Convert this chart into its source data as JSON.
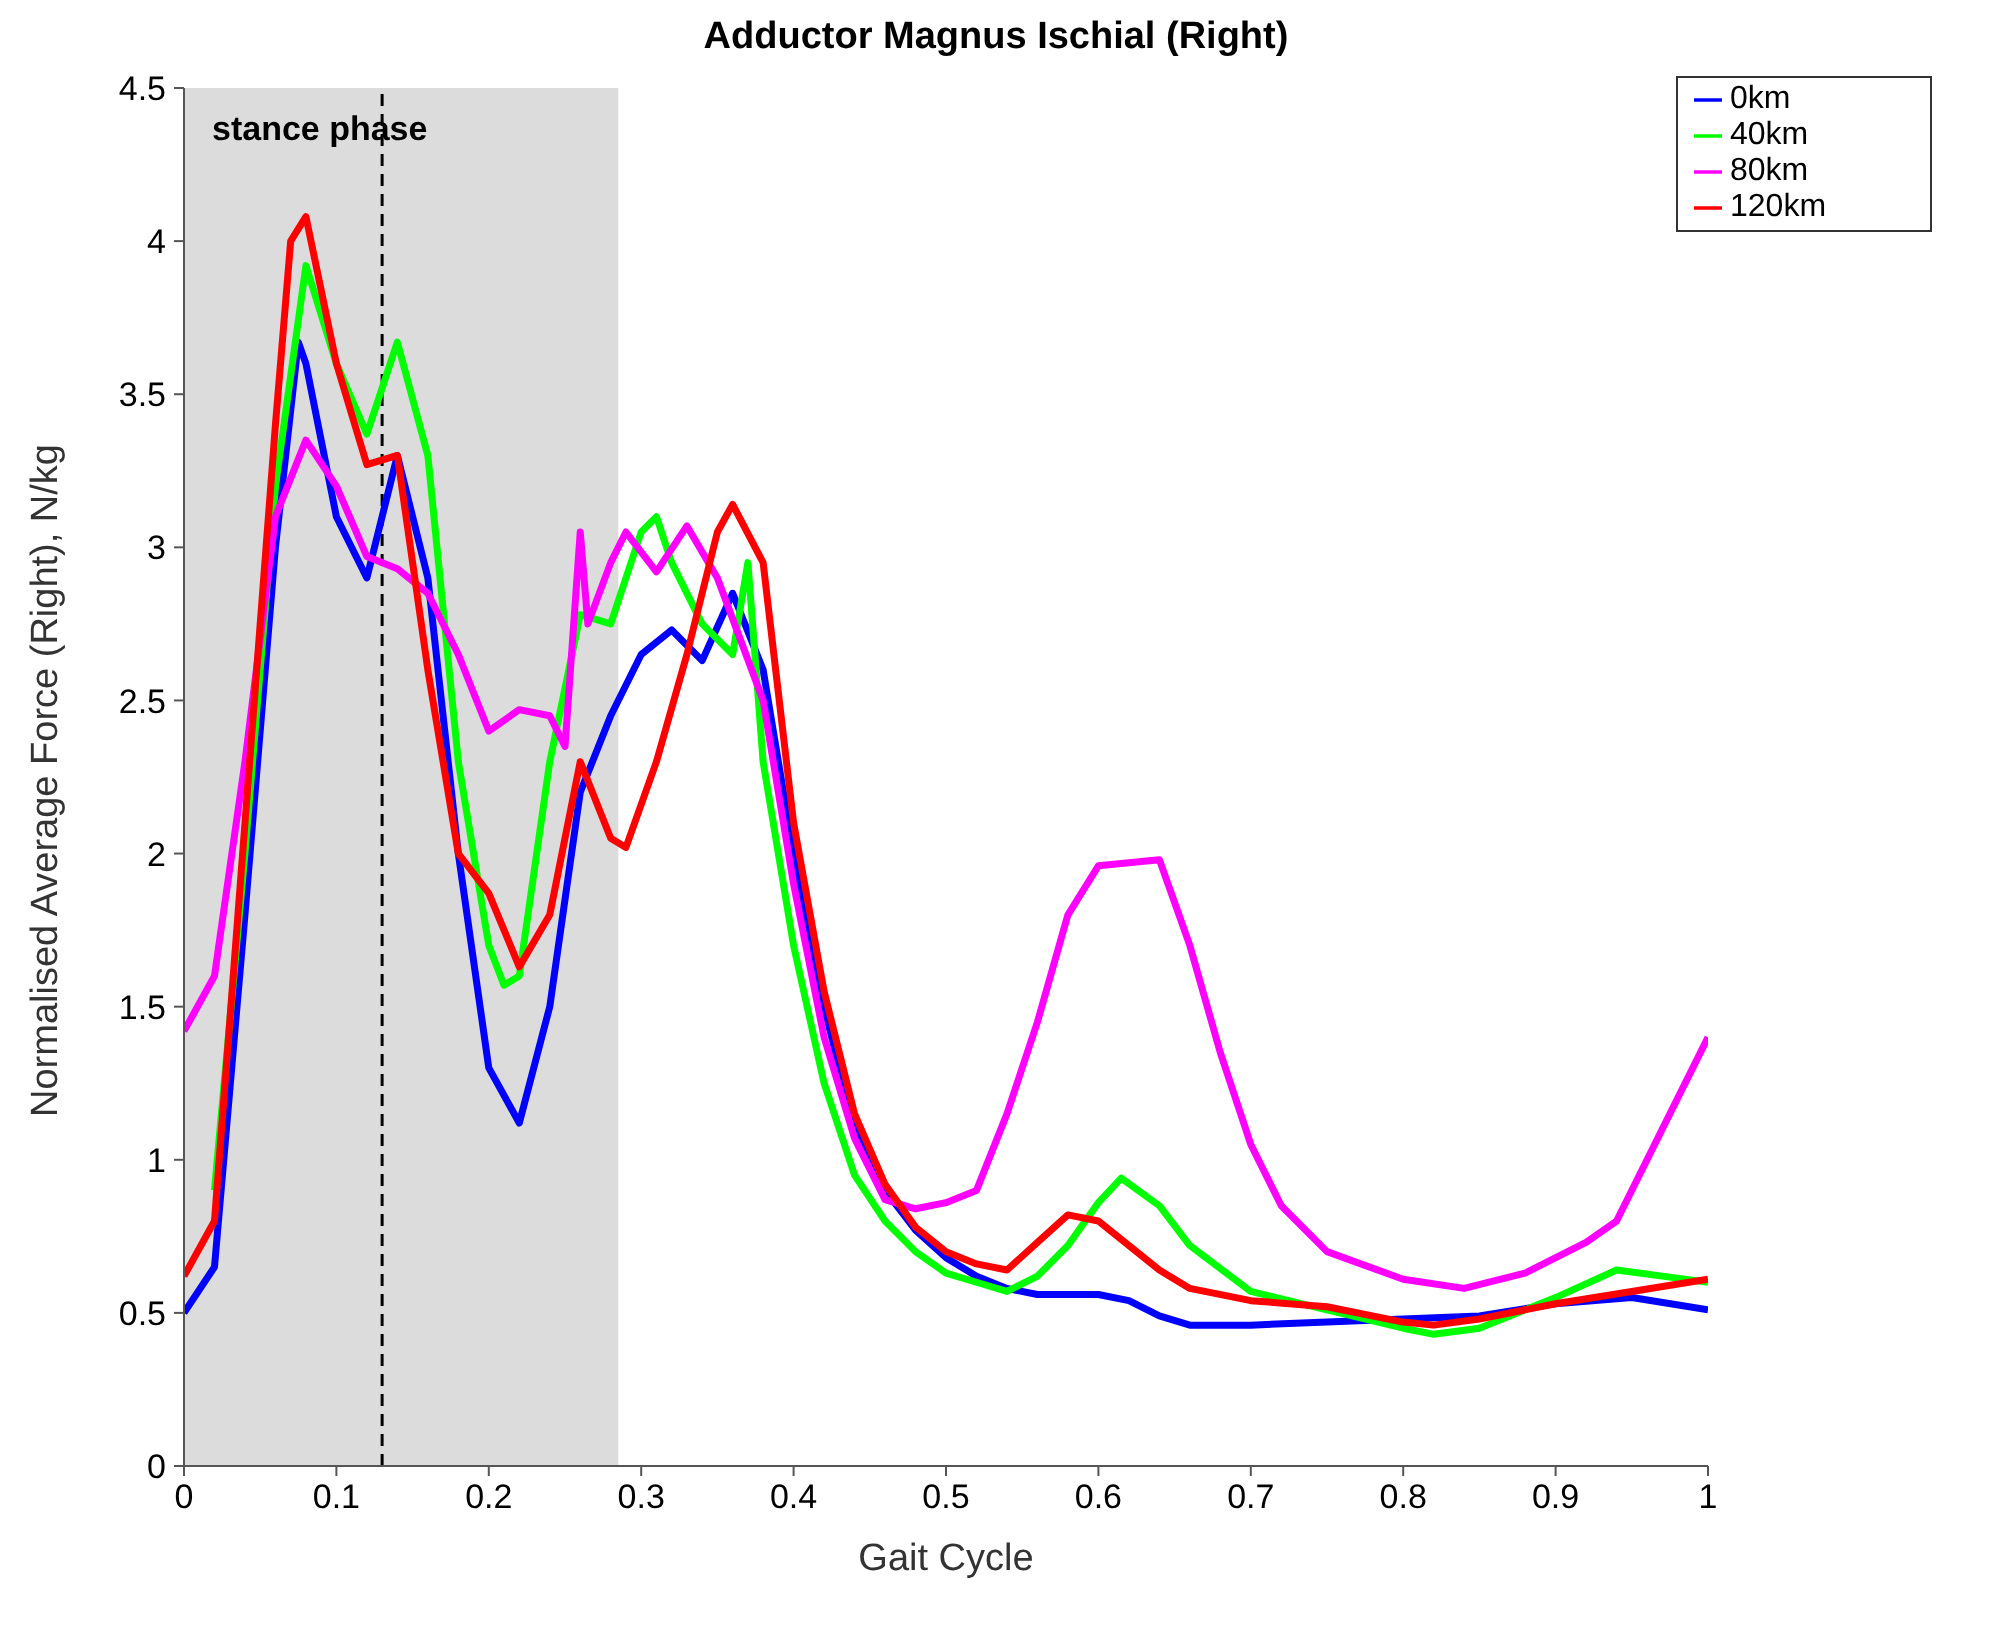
{
  "chart_data": {
    "type": "line",
    "title": "Adductor Magnus Ischial (Right)",
    "xlabel": "Gait Cycle",
    "ylabel": "Normalised Average Force (Right), N/kg",
    "xlim": [
      0,
      1
    ],
    "xticks": [
      0,
      0.1,
      0.2,
      0.3,
      0.4,
      0.5,
      0.6,
      0.7,
      0.8,
      0.9,
      1
    ],
    "ylim": [
      0,
      4.5
    ],
    "yticks": [
      0,
      0.5,
      1,
      1.5,
      2,
      2.5,
      3,
      3.5,
      4,
      4.5
    ],
    "grid": false,
    "legend": "top right",
    "marker": "none",
    "line_style": "solid",
    "bands": [
      {
        "axis": "x",
        "from": 0,
        "to": 0.285,
        "label": "stance phase",
        "color": "#dcdcdc"
      }
    ],
    "ref_lines": [
      {
        "axis": "x",
        "value": 0.13,
        "color": "#000000",
        "line_style": "dashed"
      }
    ],
    "series": [
      {
        "name": "0km",
        "color": "#0000ff",
        "x": [
          0,
          0.02,
          0.04,
          0.06,
          0.075,
          0.08,
          0.1,
          0.12,
          0.14,
          0.16,
          0.18,
          0.2,
          0.22,
          0.24,
          0.26,
          0.28,
          0.3,
          0.32,
          0.34,
          0.36,
          0.38,
          0.4,
          0.42,
          0.44,
          0.46,
          0.48,
          0.5,
          0.52,
          0.54,
          0.56,
          0.6,
          0.62,
          0.64,
          0.66,
          0.7,
          0.75,
          0.8,
          0.85,
          0.9,
          0.95,
          1
        ],
        "values": [
          0.5,
          0.65,
          1.8,
          3.0,
          3.67,
          3.6,
          3.1,
          2.9,
          3.3,
          2.9,
          2.0,
          1.3,
          1.12,
          1.5,
          2.2,
          2.45,
          2.65,
          2.73,
          2.63,
          2.85,
          2.6,
          2.0,
          1.5,
          1.1,
          0.9,
          0.77,
          0.68,
          0.62,
          0.58,
          0.56,
          0.56,
          0.54,
          0.49,
          0.46,
          0.46,
          0.47,
          0.48,
          0.49,
          0.53,
          0.55,
          0.51
        ]
      },
      {
        "name": "40km",
        "color": "#00ff00",
        "x": [
          0.02,
          0.04,
          0.06,
          0.08,
          0.1,
          0.12,
          0.14,
          0.16,
          0.18,
          0.2,
          0.21,
          0.22,
          0.24,
          0.26,
          0.28,
          0.3,
          0.31,
          0.32,
          0.34,
          0.36,
          0.37,
          0.38,
          0.4,
          0.42,
          0.44,
          0.46,
          0.48,
          0.5,
          0.52,
          0.54,
          0.56,
          0.58,
          0.6,
          0.615,
          0.64,
          0.66,
          0.7,
          0.75,
          0.8,
          0.82,
          0.85,
          0.9,
          0.94,
          0.97,
          1
        ],
        "values": [
          0.9,
          2.0,
          3.2,
          3.92,
          3.6,
          3.37,
          3.67,
          3.3,
          2.3,
          1.7,
          1.57,
          1.6,
          2.3,
          2.78,
          2.75,
          3.05,
          3.1,
          2.95,
          2.75,
          2.65,
          2.95,
          2.3,
          1.7,
          1.25,
          0.95,
          0.8,
          0.7,
          0.63,
          0.6,
          0.57,
          0.62,
          0.72,
          0.86,
          0.94,
          0.85,
          0.72,
          0.57,
          0.51,
          0.45,
          0.43,
          0.45,
          0.55,
          0.64,
          0.62,
          0.6
        ]
      },
      {
        "name": "80km",
        "color": "#ff00ff",
        "x": [
          0,
          0.02,
          0.04,
          0.06,
          0.08,
          0.1,
          0.12,
          0.14,
          0.16,
          0.18,
          0.2,
          0.22,
          0.24,
          0.25,
          0.26,
          0.265,
          0.28,
          0.29,
          0.31,
          0.33,
          0.35,
          0.38,
          0.4,
          0.42,
          0.44,
          0.46,
          0.48,
          0.5,
          0.52,
          0.54,
          0.56,
          0.58,
          0.6,
          0.62,
          0.64,
          0.66,
          0.68,
          0.7,
          0.72,
          0.75,
          0.8,
          0.84,
          0.88,
          0.92,
          0.94,
          0.96,
          0.98,
          1
        ],
        "values": [
          1.42,
          1.6,
          2.3,
          3.1,
          3.35,
          3.2,
          2.97,
          2.93,
          2.85,
          2.65,
          2.4,
          2.47,
          2.45,
          2.35,
          3.05,
          2.75,
          2.95,
          3.05,
          2.92,
          3.07,
          2.9,
          2.5,
          1.9,
          1.4,
          1.07,
          0.87,
          0.84,
          0.86,
          0.9,
          1.15,
          1.45,
          1.8,
          1.96,
          1.97,
          1.98,
          1.7,
          1.35,
          1.05,
          0.85,
          0.7,
          0.61,
          0.58,
          0.63,
          0.73,
          0.8,
          1.0,
          1.2,
          1.4
        ]
      },
      {
        "name": "120km",
        "color": "#ff0000",
        "x": [
          0,
          0.02,
          0.04,
          0.06,
          0.07,
          0.08,
          0.1,
          0.12,
          0.14,
          0.16,
          0.18,
          0.2,
          0.22,
          0.24,
          0.26,
          0.28,
          0.29,
          0.31,
          0.33,
          0.35,
          0.36,
          0.38,
          0.4,
          0.42,
          0.44,
          0.46,
          0.48,
          0.5,
          0.52,
          0.54,
          0.56,
          0.58,
          0.6,
          0.62,
          0.64,
          0.66,
          0.7,
          0.75,
          0.8,
          0.82,
          0.85,
          0.9,
          0.95,
          1
        ],
        "values": [
          0.62,
          0.8,
          2.1,
          3.4,
          4.0,
          4.08,
          3.6,
          3.27,
          3.3,
          2.6,
          2.0,
          1.87,
          1.63,
          1.8,
          2.3,
          2.05,
          2.02,
          2.3,
          2.65,
          3.05,
          3.14,
          2.95,
          2.1,
          1.55,
          1.15,
          0.92,
          0.78,
          0.7,
          0.66,
          0.64,
          0.73,
          0.82,
          0.8,
          0.72,
          0.64,
          0.58,
          0.54,
          0.52,
          0.47,
          0.46,
          0.48,
          0.53,
          0.57,
          0.61
        ]
      }
    ]
  }
}
